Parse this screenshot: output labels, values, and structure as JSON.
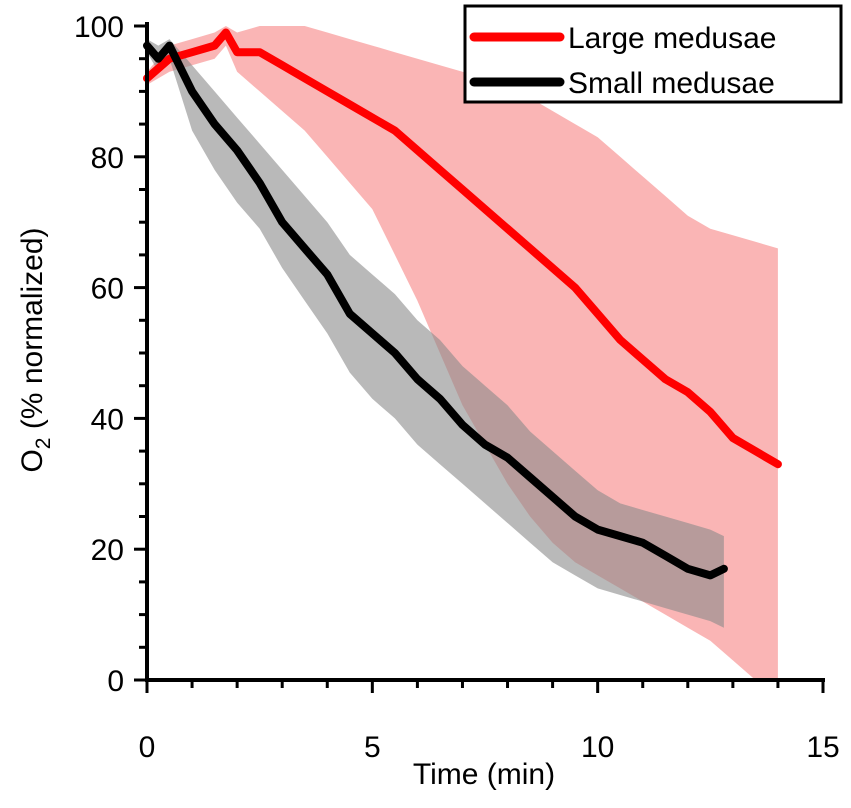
{
  "chart_data": {
    "type": "line",
    "title": "",
    "xlabel": "Time (min)",
    "ylabel": {
      "main": "O",
      "sub": "2",
      "rest": " (% normalized)"
    },
    "xlim": [
      0,
      15
    ],
    "ylim": [
      0,
      100
    ],
    "xticks": [
      0,
      5,
      10,
      15
    ],
    "yticks": [
      0,
      20,
      40,
      60,
      80,
      100
    ],
    "xtick_labels": [
      "0",
      "5",
      "10",
      "15"
    ],
    "ytick_labels": [
      "0",
      "20",
      "40",
      "60",
      "80",
      "100"
    ],
    "legend_position": "top-right",
    "series": [
      {
        "name": "Large medusae",
        "color": "#ff0000",
        "band_color": "#f9a8a8",
        "x": [
          0,
          0.5,
          1,
          1.5,
          1.75,
          2,
          2.5,
          3,
          3.5,
          4,
          4.5,
          5,
          5.5,
          6,
          6.5,
          7,
          7.5,
          8,
          8.5,
          9,
          9.5,
          10,
          10.5,
          11,
          11.5,
          12,
          12.5,
          13,
          13.5,
          14
        ],
        "y": [
          92,
          95,
          96,
          97,
          99,
          96,
          96,
          94,
          92,
          90,
          88,
          86,
          84,
          81,
          78,
          75,
          72,
          69,
          66,
          63,
          60,
          56,
          52,
          49,
          46,
          44,
          41,
          37,
          35,
          33
        ],
        "upper": [
          93,
          97,
          98,
          99,
          100,
          99,
          100,
          100,
          100,
          99,
          98,
          97,
          96,
          95,
          94,
          93,
          92,
          91,
          89,
          87,
          85,
          83,
          80,
          77,
          74,
          71,
          69,
          68,
          67,
          66
        ],
        "lower": [
          91,
          93,
          94,
          95,
          97,
          93,
          90,
          87,
          84,
          80,
          76,
          72,
          65,
          58,
          50,
          42,
          36,
          30,
          25,
          21,
          18,
          16,
          14,
          12,
          10,
          8,
          6,
          3,
          0,
          0
        ]
      },
      {
        "name": "Small medusae",
        "color": "#000000",
        "band_color": "#8a8a8a",
        "x": [
          0,
          0.25,
          0.5,
          1,
          1.5,
          2,
          2.5,
          3,
          3.5,
          4,
          4.5,
          5,
          5.5,
          6,
          6.5,
          7,
          7.5,
          8,
          8.5,
          9,
          9.5,
          10,
          10.5,
          11,
          11.5,
          12,
          12.5,
          12.8
        ],
        "y": [
          97,
          95,
          97,
          90,
          85,
          81,
          76,
          70,
          66,
          62,
          56,
          53,
          50,
          46,
          43,
          39,
          36,
          34,
          31,
          28,
          25,
          23,
          22,
          21,
          19,
          17,
          16,
          17
        ],
        "upper": [
          98,
          97,
          98,
          94,
          90,
          86,
          82,
          78,
          74,
          70,
          65,
          62,
          59,
          55,
          52,
          48,
          45,
          42,
          38,
          35,
          32,
          29,
          27,
          26,
          25,
          24,
          23,
          22
        ],
        "lower": [
          96,
          93,
          95,
          84,
          78,
          73,
          69,
          63,
          58,
          53,
          47,
          43,
          40,
          36,
          33,
          30,
          27,
          24,
          21,
          18,
          16,
          14,
          13,
          12,
          11,
          10,
          9,
          8
        ]
      }
    ]
  }
}
